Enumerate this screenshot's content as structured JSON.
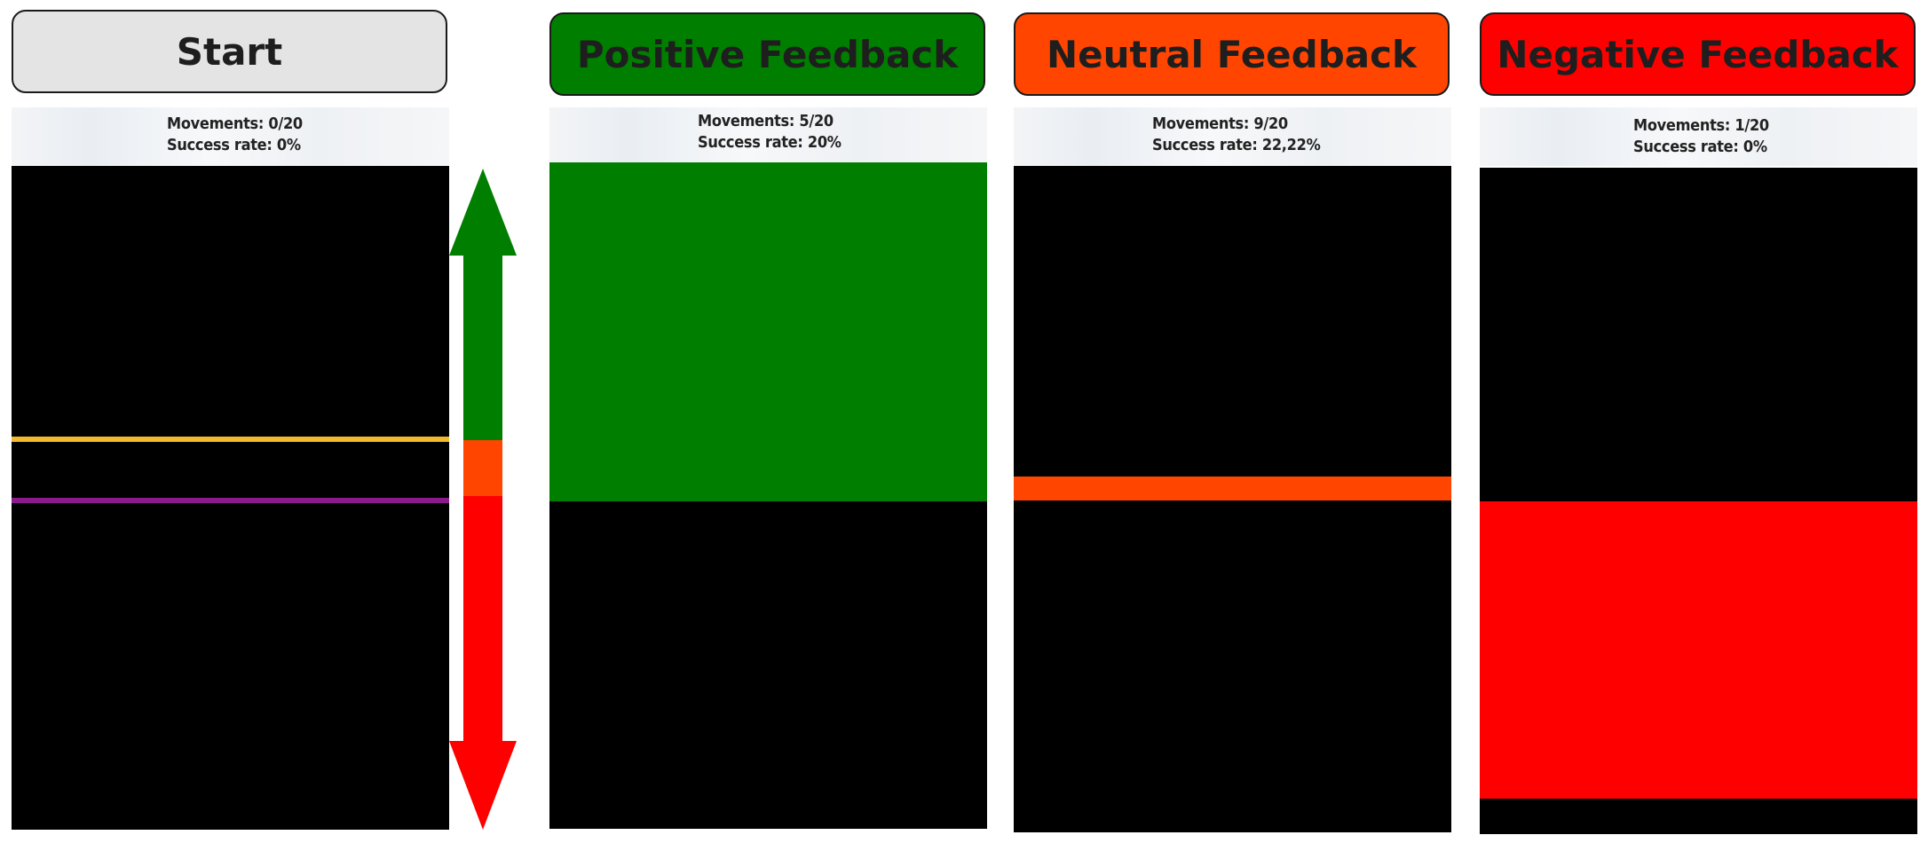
{
  "colors": {
    "start_header": "#e4e4e4",
    "positive": "#007e00",
    "neutral": "#ff4500",
    "negative": "#ff0000",
    "yellow_line": "#f3b92d",
    "purple_line": "#8b1a8c",
    "background_game": "#000000"
  },
  "panels": {
    "start": {
      "title": "Start",
      "movements": "Movements: 0/20",
      "success_rate": "Success rate: 0%"
    },
    "positive": {
      "title": "Positive Feedback",
      "movements": "Movements: 5/20",
      "success_rate": "Success rate: 20%"
    },
    "neutral": {
      "title": "Neutral Feedback",
      "movements": "Movements: 9/20",
      "success_rate": "Success rate: 22,22%"
    },
    "negative": {
      "title": "Negative Feedback",
      "movements": "Movements: 1/20",
      "success_rate": "Success rate: 0%"
    }
  },
  "scale_arrow": {
    "icon": "up-down-arrow-icon",
    "segments": [
      "positive",
      "neutral",
      "negative"
    ]
  }
}
